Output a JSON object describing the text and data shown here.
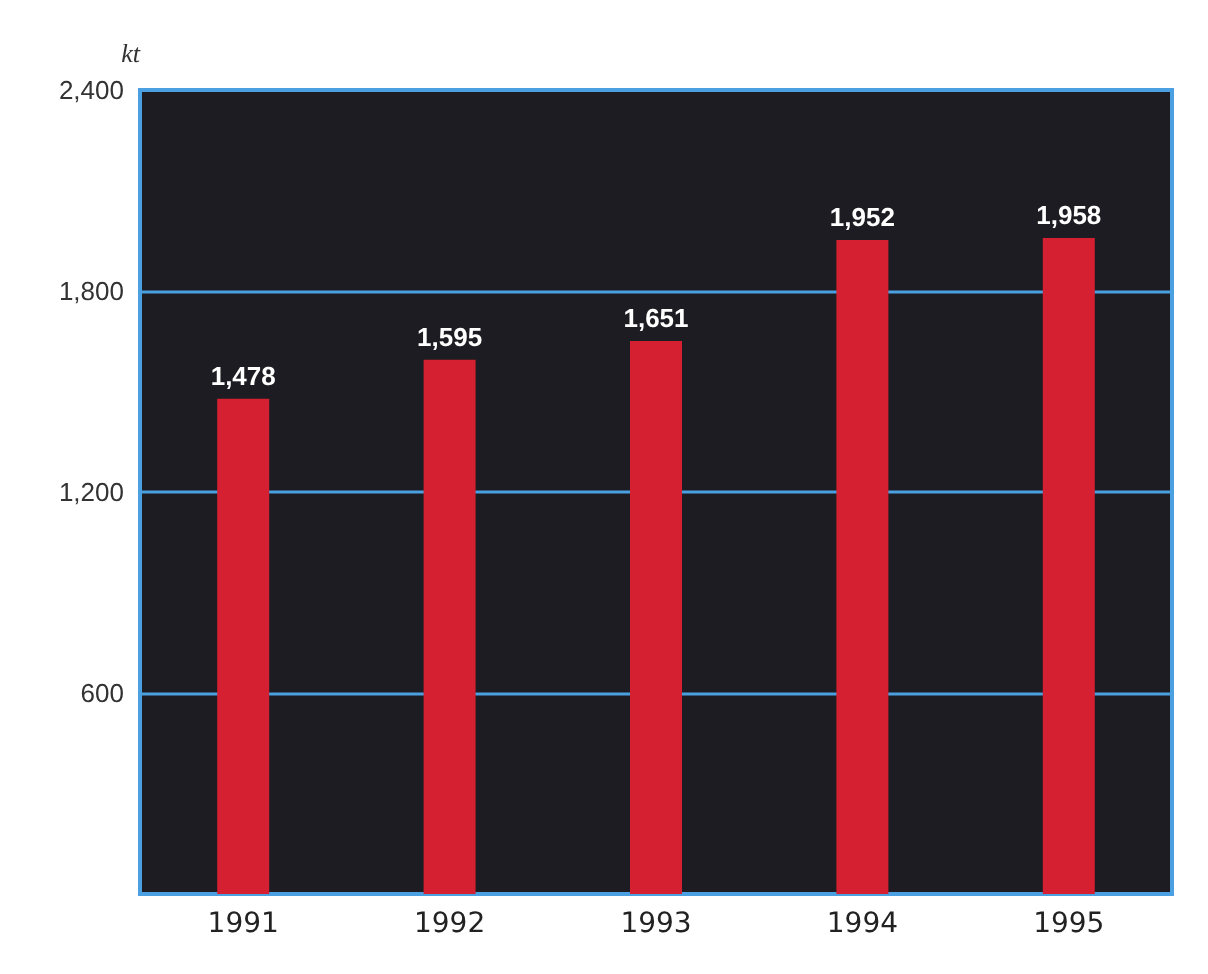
{
  "chart_data": {
    "type": "bar",
    "ylabel": "kt",
    "categories": [
      "1991",
      "1992",
      "1993",
      "1994",
      "1995"
    ],
    "values": [
      1478,
      1595,
      1651,
      1952,
      1958
    ],
    "value_labels": [
      "1,478",
      "1,595",
      "1,651",
      "1,952",
      "1,958"
    ],
    "color": "#d42030",
    "ylim": [
      0,
      2400
    ],
    "yticks": [
      {
        "value": 600,
        "label": "600"
      },
      {
        "value": 1200,
        "label": "1,200"
      },
      {
        "value": 1800,
        "label": "1,800"
      },
      {
        "value": 2400,
        "label": "2,400"
      }
    ],
    "grid": "y"
  }
}
